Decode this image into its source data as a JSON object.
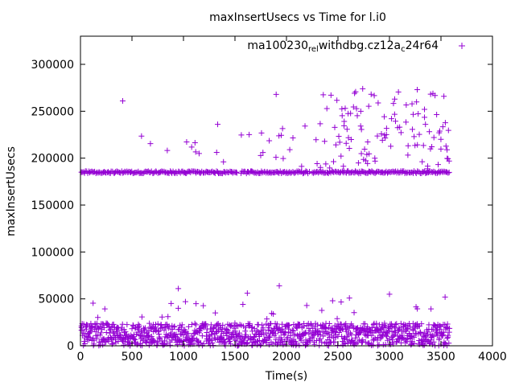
{
  "chart_data": {
    "type": "scatter",
    "title": "maxInsertUsecs vs Time for l.i0",
    "xlabel": "Time(s)",
    "ylabel": "maxInsertUsecs",
    "xlim": [
      0,
      4000
    ],
    "ylim": [
      0,
      330000
    ],
    "x_ticks": [
      0,
      500,
      1000,
      1500,
      2000,
      2500,
      3000,
      3500,
      4000
    ],
    "y_ticks": [
      0,
      50000,
      100000,
      150000,
      200000,
      250000,
      300000
    ],
    "x_tick_labels": [
      "0",
      "500",
      "1000",
      "1500",
      "2000",
      "2500",
      "3000",
      "3500",
      "4000"
    ],
    "y_tick_labels": [
      "0",
      "50000",
      "100000",
      "150000",
      "200000",
      "250000",
      "300000"
    ],
    "legend_position": "top-right",
    "series": [
      {
        "name": "ma100230_rel_withdbg.cz12a_c24r64",
        "legend": {
          "parts": [
            {
              "text": "ma100230",
              "sub": false
            },
            {
              "text": "rel",
              "sub": true
            },
            {
              "text": "withdbg.cz12a",
              "sub": false
            },
            {
              "text": "c",
              "sub": true
            },
            {
              "text": "24r64",
              "sub": false
            }
          ]
        },
        "color": "#9400d3",
        "marker": "plus",
        "generator": {
          "x_start": 10,
          "x_end": 3580,
          "x_step": 10,
          "seed": 4242,
          "low_band": {
            "points_per_step": 3,
            "base_max": 24000,
            "outlier_max": 64000
          },
          "high_band": {
            "base": 185000,
            "jitter": 2500,
            "spike_min": 186000,
            "spike_max": 274000
          }
        },
        "notable_points": [
          {
            "x": 950,
            "y": 61000
          },
          {
            "x": 1620,
            "y": 56000
          },
          {
            "x": 1930,
            "y": 64000
          },
          {
            "x": 2740,
            "y": 274000
          },
          {
            "x": 3270,
            "y": 273000
          },
          {
            "x": 1900,
            "y": 268000
          },
          {
            "x": 410,
            "y": 261000
          },
          {
            "x": 3000,
            "y": 55000
          },
          {
            "x": 3540,
            "y": 52000
          }
        ]
      }
    ]
  }
}
